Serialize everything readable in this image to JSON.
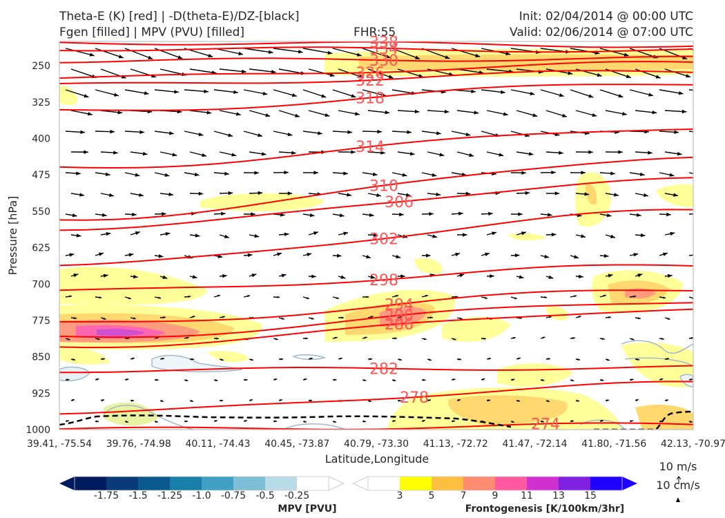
{
  "header": {
    "line1_left": "Theta-E (K) [red] | -D(theta-E)/DZ-[black]",
    "line2_left": "Fgen [filled] | MPV (PVU) [filled]",
    "line2_center": "FHR:55",
    "line1_right": "Init: 02/04/2014 @ 00:00 UTC",
    "line2_right": "Valid: 02/06/2014 @ 07:00 UTC"
  },
  "colors": {
    "theta_e_contour": "#ff0000",
    "contour_label": "#ff5555",
    "wind_arrow": "#000000",
    "fgen": [
      "#ffff00",
      "#ffc040",
      "#ff8c70",
      "#ff5aa0",
      "#d030d0",
      "#8020e0",
      "#2000ff"
    ],
    "mpv": [
      "#001a5e",
      "#0a3a7a",
      "#0a5a8f",
      "#1a7fa8",
      "#3fa0c4",
      "#7ebdd6",
      "#b9dce8",
      "#ffffff"
    ]
  },
  "chart_data": {
    "type": "cross-section",
    "ylabel": "Pressure [hPa]",
    "xlabel": "Latitude,Longitude",
    "y_axis": {
      "ticks": [
        250,
        325,
        400,
        475,
        550,
        625,
        700,
        775,
        850,
        925,
        1000
      ],
      "range": [
        1000,
        200
      ],
      "inverted": true
    },
    "x_ticks": [
      "39.41, -75.54",
      "39.76, -74.98",
      "40.11, -74.43",
      "40.45, -73.87",
      "40.79, -73.30",
      "41.13, -72.72",
      "41.47, -72.14",
      "41.80, -71.56",
      "42.13, -70.97"
    ],
    "theta_e_contours": [
      {
        "level": 338,
        "label": "338",
        "p_left": 202,
        "p_right": 208
      },
      {
        "level": 334,
        "label": "334",
        "p_left": 215,
        "p_right": 218
      },
      {
        "level": 330,
        "label": "330",
        "p_left": 240,
        "p_right": 235
      },
      {
        "level": 326,
        "label": "326",
        "p_left": 275,
        "p_right": 245
      },
      {
        "level": 322,
        "label": "322",
        "p_left": 290,
        "p_right": 262
      },
      {
        "level": 318,
        "label": "318",
        "p_left": 345,
        "p_right": 285
      },
      {
        "level": 314,
        "label": "314",
        "p_left": 460,
        "p_right": 378
      },
      {
        "level": 310,
        "label": "310",
        "p_left": 565,
        "p_right": 440
      },
      {
        "level": 306,
        "label": "306",
        "p_left": 585,
        "p_right": 485
      },
      {
        "level": 302,
        "label": "302",
        "p_left": 660,
        "p_right": 550
      },
      {
        "level": 298,
        "label": "298",
        "p_left": 715,
        "p_right": 662
      },
      {
        "level": 294,
        "label": "294",
        "p_left": 782,
        "p_right": 710
      },
      {
        "level": 290,
        "label": "290",
        "p_left": 810,
        "p_right": 735
      },
      {
        "level": 286,
        "label": "286",
        "p_left": 828,
        "p_right": 752
      },
      {
        "level": 282,
        "label": "282",
        "p_left": 878,
        "p_right": 872
      },
      {
        "level": 278,
        "label": "278",
        "p_left": 965,
        "p_right": 905
      },
      {
        "level": 274,
        "label": "274",
        "p_left": 1000,
        "p_right": 990
      }
    ],
    "fgen_colorbar": {
      "label": "Frontogenesis [K/100km/3hr]",
      "ticks": [
        "3",
        "5",
        "7",
        "9",
        "11",
        "13",
        "15"
      ]
    },
    "mpv_colorbar": {
      "label": "MPV [PVU]",
      "ticks": [
        "-1.75",
        "-1.5",
        "-1.25",
        "-1.0",
        "-0.75",
        "-0.5",
        "-0.25"
      ]
    },
    "vector_reference": {
      "horizontal": "10 m/s",
      "vertical": "10 cm/s"
    }
  }
}
